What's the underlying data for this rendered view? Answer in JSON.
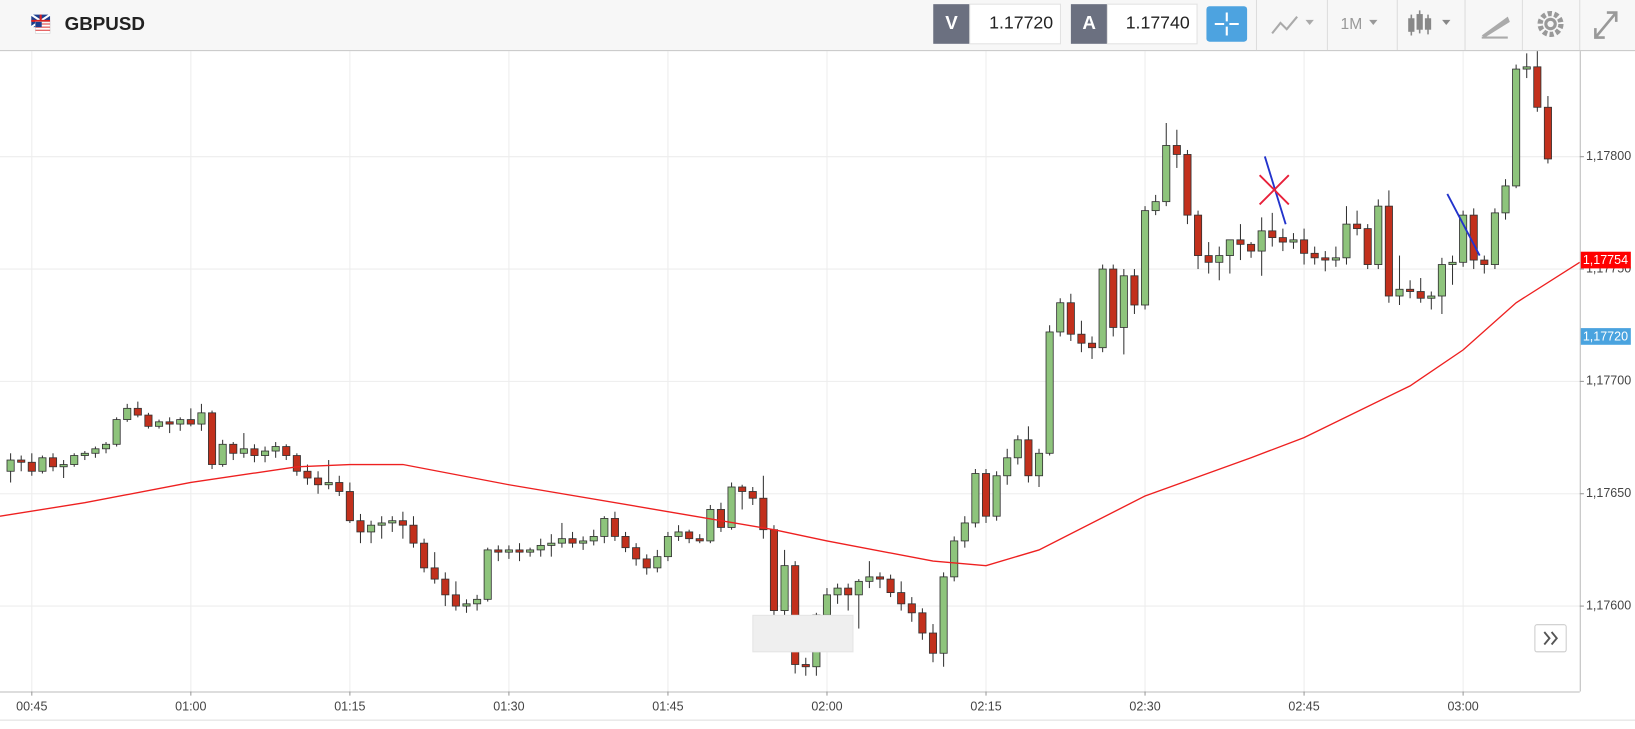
{
  "header": {
    "symbol": "GBPUSD",
    "bid_label": "V",
    "bid": "1.17720",
    "ask_label": "A",
    "ask": "1.17740",
    "timeframe": "1M"
  },
  "chart_data": {
    "type": "candlestick",
    "x": [
      "00:43",
      "00:44",
      "00:45",
      "00:46",
      "00:47",
      "00:48",
      "00:49",
      "00:50",
      "00:51",
      "00:52",
      "00:53",
      "00:54",
      "00:55",
      "00:56",
      "00:57",
      "00:58",
      "00:59",
      "01:00",
      "01:01",
      "01:02",
      "01:03",
      "01:04",
      "01:05",
      "01:06",
      "01:07",
      "01:08",
      "01:09",
      "01:10",
      "01:11",
      "01:12",
      "01:13",
      "01:14",
      "01:15",
      "01:16",
      "01:17",
      "01:18",
      "01:19",
      "01:20",
      "01:21",
      "01:22",
      "01:23",
      "01:24",
      "01:25",
      "01:26",
      "01:27",
      "01:28",
      "01:29",
      "01:30",
      "01:31",
      "01:32",
      "01:33",
      "01:34",
      "01:35",
      "01:36",
      "01:37",
      "01:38",
      "01:39",
      "01:40",
      "01:41",
      "01:42",
      "01:43",
      "01:44",
      "01:45",
      "01:46",
      "01:47",
      "01:48",
      "01:49",
      "01:50",
      "01:51",
      "01:52",
      "01:53",
      "01:54",
      "01:55",
      "01:56",
      "01:57",
      "01:58",
      "01:59",
      "02:00",
      "02:01",
      "02:02",
      "02:03",
      "02:04",
      "02:05",
      "02:06",
      "02:07",
      "02:08",
      "02:09",
      "02:10",
      "02:11",
      "02:12",
      "02:13",
      "02:14",
      "02:15",
      "02:16",
      "02:17",
      "02:18",
      "02:19",
      "02:20",
      "02:21",
      "02:22",
      "02:23",
      "02:24",
      "02:25",
      "02:26",
      "02:27",
      "02:28",
      "02:29",
      "02:30",
      "02:31",
      "02:32",
      "02:33",
      "02:34",
      "02:35",
      "02:36",
      "02:37",
      "02:38",
      "02:39",
      "02:40",
      "02:41",
      "02:42",
      "02:43",
      "02:44",
      "02:45",
      "02:46",
      "02:47",
      "02:48",
      "02:49",
      "02:50",
      "02:51",
      "02:52",
      "02:53",
      "02:54",
      "02:55",
      "02:56",
      "02:57",
      "02:58",
      "02:59",
      "03:00",
      "03:01",
      "03:02",
      "03:03",
      "03:04",
      "03:05",
      "03:06",
      "03:07",
      "03:08"
    ],
    "open": [
      1.1766,
      1.17665,
      1.17664,
      1.1766,
      1.17666,
      1.17662,
      1.17663,
      1.17667,
      1.17668,
      1.1767,
      1.17672,
      1.17683,
      1.17688,
      1.17685,
      1.1768,
      1.17682,
      1.17681,
      1.17683,
      1.17681,
      1.17686,
      1.17663,
      1.17672,
      1.17668,
      1.1767,
      1.17667,
      1.17669,
      1.17671,
      1.17667,
      1.1766,
      1.17657,
      1.17654,
      1.17655,
      1.17651,
      1.17638,
      1.17633,
      1.17636,
      1.17637,
      1.17638,
      1.17636,
      1.17628,
      1.17617,
      1.17612,
      1.17605,
      1.176,
      1.17601,
      1.17603,
      1.17625,
      1.17624,
      1.17625,
      1.17624,
      1.17625,
      1.17627,
      1.17628,
      1.1763,
      1.17628,
      1.17629,
      1.17631,
      1.17639,
      1.17631,
      1.17626,
      1.17621,
      1.17617,
      1.17622,
      1.17631,
      1.17633,
      1.1763,
      1.17629,
      1.17643,
      1.17635,
      1.17653,
      1.17651,
      1.17648,
      1.17634,
      1.17598,
      1.17618,
      1.17574,
      1.17573,
      1.17596,
      1.17605,
      1.17608,
      1.17605,
      1.17611,
      1.17613,
      1.17612,
      1.17606,
      1.17601,
      1.17597,
      1.17588,
      1.17579,
      1.17613,
      1.17629,
      1.17637,
      1.17659,
      1.1764,
      1.17658,
      1.17666,
      1.17674,
      1.17658,
      1.17668,
      1.17722,
      1.17735,
      1.17721,
      1.17717,
      1.17715,
      1.1775,
      1.17724,
      1.17747,
      1.17734,
      1.17776,
      1.1778,
      1.17805,
      1.17801,
      1.17774,
      1.17756,
      1.17753,
      1.17756,
      1.17763,
      1.17761,
      1.17758,
      1.17767,
      1.17764,
      1.17762,
      1.17763,
      1.17757,
      1.17755,
      1.17754,
      1.17755,
      1.1777,
      1.17768,
      1.17752,
      1.17778,
      1.17738,
      1.17741,
      1.1774,
      1.17737,
      1.17738,
      1.17752,
      1.17753,
      1.17774,
      1.17754,
      1.17752,
      1.17775,
      1.17787,
      1.17839,
      1.1784,
      1.17822
    ],
    "high": [
      1.17668,
      1.17667,
      1.17668,
      1.17667,
      1.17668,
      1.17665,
      1.17668,
      1.17669,
      1.17671,
      1.17673,
      1.17684,
      1.1769,
      1.17691,
      1.17686,
      1.17683,
      1.17684,
      1.17684,
      1.17688,
      1.1769,
      1.17687,
      1.17674,
      1.17673,
      1.17677,
      1.17672,
      1.17671,
      1.17673,
      1.17672,
      1.17668,
      1.17663,
      1.1766,
      1.17665,
      1.17658,
      1.17655,
      1.17641,
      1.17638,
      1.1764,
      1.1764,
      1.17642,
      1.1764,
      1.1763,
      1.17624,
      1.17615,
      1.17611,
      1.17603,
      1.17605,
      1.17626,
      1.17627,
      1.17627,
      1.17628,
      1.17626,
      1.1763,
      1.17632,
      1.17637,
      1.17633,
      1.17631,
      1.17634,
      1.1764,
      1.17642,
      1.17633,
      1.17628,
      1.17623,
      1.17625,
      1.17633,
      1.17636,
      1.17634,
      1.17632,
      1.17645,
      1.17646,
      1.17655,
      1.17654,
      1.17653,
      1.17658,
      1.17636,
      1.17625,
      1.1762,
      1.17577,
      1.17597,
      1.17608,
      1.1761,
      1.1761,
      1.17612,
      1.1762,
      1.17615,
      1.17614,
      1.17611,
      1.17604,
      1.17599,
      1.17592,
      1.17615,
      1.17631,
      1.1764,
      1.17661,
      1.17661,
      1.1766,
      1.1767,
      1.17676,
      1.1768,
      1.1767,
      1.17725,
      1.17737,
      1.17739,
      1.17727,
      1.1772,
      1.17752,
      1.17752,
      1.1775,
      1.1775,
      1.17778,
      1.17783,
      1.17815,
      1.17812,
      1.17803,
      1.17776,
      1.17762,
      1.1776,
      1.17763,
      1.1777,
      1.17762,
      1.17773,
      1.17775,
      1.17768,
      1.17766,
      1.17768,
      1.1776,
      1.17758,
      1.1776,
      1.17778,
      1.17776,
      1.1777,
      1.17781,
      1.17785,
      1.17756,
      1.17745,
      1.17746,
      1.1774,
      1.17755,
      1.17756,
      1.17776,
      1.17777,
      1.17756,
      1.17777,
      1.1779,
      1.17841,
      1.17846,
      1.17847,
      1.17827
    ],
    "low": [
      1.17655,
      1.1766,
      1.17658,
      1.17659,
      1.1766,
      1.17657,
      1.17662,
      1.17665,
      1.17666,
      1.17668,
      1.17671,
      1.17682,
      1.17684,
      1.17679,
      1.17679,
      1.17677,
      1.17678,
      1.1768,
      1.17678,
      1.17661,
      1.17662,
      1.17665,
      1.17666,
      1.17664,
      1.17664,
      1.17666,
      1.17665,
      1.17658,
      1.17654,
      1.1765,
      1.17652,
      1.17649,
      1.17637,
      1.17628,
      1.17628,
      1.1763,
      1.17633,
      1.1763,
      1.17626,
      1.17615,
      1.1761,
      1.176,
      1.17598,
      1.17597,
      1.17598,
      1.17602,
      1.1762,
      1.17621,
      1.1762,
      1.17622,
      1.17622,
      1.17622,
      1.17626,
      1.17626,
      1.17625,
      1.17627,
      1.17628,
      1.17629,
      1.17624,
      1.17618,
      1.17614,
      1.17615,
      1.1762,
      1.17629,
      1.17628,
      1.17628,
      1.17628,
      1.17633,
      1.17634,
      1.17643,
      1.17645,
      1.1763,
      1.17595,
      1.17596,
      1.1757,
      1.17569,
      1.17569,
      1.1759,
      1.17601,
      1.17598,
      1.1759,
      1.17608,
      1.17608,
      1.17604,
      1.17598,
      1.17593,
      1.17585,
      1.17575,
      1.17573,
      1.17611,
      1.17626,
      1.17635,
      1.17637,
      1.17638,
      1.17654,
      1.17663,
      1.17655,
      1.17653,
      1.17667,
      1.1772,
      1.17718,
      1.17713,
      1.1771,
      1.17713,
      1.1772,
      1.17712,
      1.1773,
      1.17732,
      1.17774,
      1.17778,
      1.17795,
      1.1777,
      1.1775,
      1.17748,
      1.17745,
      1.17748,
      1.17754,
      1.17755,
      1.17747,
      1.1776,
      1.17758,
      1.17759,
      1.17752,
      1.17752,
      1.17749,
      1.17751,
      1.17752,
      1.17765,
      1.1775,
      1.1775,
      1.17735,
      1.17734,
      1.17737,
      1.17735,
      1.17732,
      1.1773,
      1.17743,
      1.17751,
      1.1775,
      1.17748,
      1.1775,
      1.17772,
      1.17786,
      1.17835,
      1.1782,
      1.17797
    ],
    "close": [
      1.17665,
      1.17664,
      1.1766,
      1.17666,
      1.17662,
      1.17663,
      1.17667,
      1.17668,
      1.1767,
      1.17672,
      1.17683,
      1.17688,
      1.17685,
      1.1768,
      1.17682,
      1.17681,
      1.17683,
      1.17681,
      1.17686,
      1.17663,
      1.17672,
      1.17668,
      1.1767,
      1.17667,
      1.17669,
      1.17671,
      1.17667,
      1.1766,
      1.17657,
      1.17654,
      1.17655,
      1.17651,
      1.17638,
      1.17633,
      1.17636,
      1.17637,
      1.17638,
      1.17636,
      1.17628,
      1.17617,
      1.17612,
      1.17605,
      1.176,
      1.17601,
      1.17603,
      1.17625,
      1.17624,
      1.17625,
      1.17624,
      1.17625,
      1.17627,
      1.17628,
      1.1763,
      1.17628,
      1.17629,
      1.17631,
      1.17639,
      1.17631,
      1.17626,
      1.17621,
      1.17617,
      1.17622,
      1.17631,
      1.17633,
      1.1763,
      1.17629,
      1.17643,
      1.17635,
      1.17653,
      1.17651,
      1.17648,
      1.17634,
      1.17598,
      1.17618,
      1.17574,
      1.17573,
      1.17596,
      1.17605,
      1.17608,
      1.17605,
      1.17611,
      1.17613,
      1.17612,
      1.17606,
      1.17601,
      1.17597,
      1.17588,
      1.17579,
      1.17613,
      1.17629,
      1.17637,
      1.17659,
      1.1764,
      1.17658,
      1.17666,
      1.17674,
      1.17658,
      1.17668,
      1.17722,
      1.17735,
      1.17721,
      1.17717,
      1.17715,
      1.1775,
      1.17724,
      1.17747,
      1.17734,
      1.17776,
      1.1778,
      1.17805,
      1.17801,
      1.17774,
      1.17756,
      1.17753,
      1.17756,
      1.17763,
      1.17761,
      1.17758,
      1.17767,
      1.17764,
      1.17762,
      1.17763,
      1.17757,
      1.17755,
      1.17754,
      1.17755,
      1.1777,
      1.17768,
      1.17752,
      1.17778,
      1.17738,
      1.17741,
      1.1774,
      1.17737,
      1.17738,
      1.17752,
      1.17753,
      1.17774,
      1.17754,
      1.17752,
      1.17775,
      1.17787,
      1.17839,
      1.1784,
      1.17822,
      1.17799
    ],
    "up_color": "#8ec47c",
    "down_color": "#c2301c",
    "moving_average": {
      "color": "#ee2020",
      "x": [
        "00:42",
        "00:50",
        "01:00",
        "01:10",
        "01:15",
        "01:20",
        "01:30",
        "01:45",
        "01:55",
        "02:00",
        "02:10",
        "02:15",
        "02:20",
        "02:30",
        "02:40",
        "02:45",
        "02:55",
        "03:00",
        "03:05",
        "03:11"
      ],
      "values": [
        1.1764,
        1.17646,
        1.17655,
        1.17662,
        1.17663,
        1.17663,
        1.17654,
        1.17642,
        1.17634,
        1.17629,
        1.1762,
        1.17618,
        1.17625,
        1.17649,
        1.17666,
        1.17675,
        1.17698,
        1.17714,
        1.17735,
        1.17753
      ]
    },
    "price_markers": [
      {
        "value": 1.17754,
        "label": "1,17754",
        "color": "#ff0000"
      },
      {
        "value": 1.1772,
        "label": "1,17720",
        "color": "#4aa3df"
      }
    ],
    "xlim": [
      "00:42",
      "03:11"
    ],
    "xticks": [
      "00:45",
      "01:00",
      "01:15",
      "01:30",
      "01:45",
      "02:00",
      "02:15",
      "02:30",
      "02:45",
      "03:00"
    ],
    "ylim": [
      1.17562,
      1.17847
    ],
    "yticks": [
      {
        "value": 1.176,
        "label": "1,17600"
      },
      {
        "value": 1.1765,
        "label": "1,17650"
      },
      {
        "value": 1.177,
        "label": "1,17700"
      },
      {
        "value": 1.1775,
        "label": "1,17750"
      },
      {
        "value": 1.178,
        "label": "1,17800"
      }
    ],
    "grid": true
  }
}
